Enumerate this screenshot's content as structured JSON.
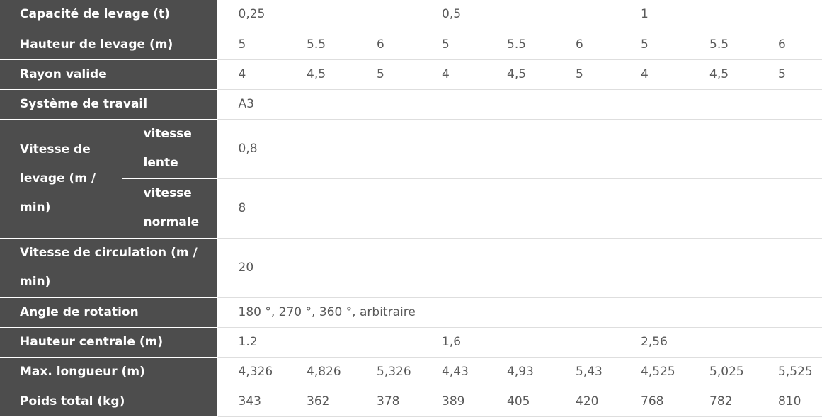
{
  "table": {
    "rows": [
      {
        "label": "Capacité de levage (t)",
        "values": [
          "0,25",
          "0,5",
          "1"
        ]
      },
      {
        "label": "Hauteur de levage (m)",
        "values": [
          "5",
          "5.5",
          "6",
          "5",
          "5.5",
          "6",
          "5",
          "5.5",
          "6"
        ]
      },
      {
        "label": "Rayon valide",
        "values": [
          "4",
          "4,5",
          "5",
          "4",
          "4,5",
          "5",
          "4",
          "4,5",
          "5"
        ]
      },
      {
        "label": "Système de travail",
        "values": [
          "A3"
        ]
      },
      {
        "label": "Vitesse de levage (m / min)",
        "sub": [
          {
            "label": "vitesse lente",
            "value": "0,8"
          },
          {
            "label": "vitesse normale",
            "value": "8"
          }
        ]
      },
      {
        "label": "Vitesse de circulation (m / min)",
        "values": [
          "20"
        ]
      },
      {
        "label": "Angle de rotation",
        "values": [
          "180 °, 270 °, 360 °, arbitraire"
        ]
      },
      {
        "label": "Hauteur centrale (m)",
        "values": [
          "1.2",
          "1,6",
          "2,56"
        ]
      },
      {
        "label": "Max. longueur (m)",
        "values": [
          "4,326",
          "4,826",
          "5,326",
          "4,43",
          "4,93",
          "5,43",
          "4,525",
          "5,025",
          "5,525"
        ]
      },
      {
        "label": "Poids total (kg)",
        "values": [
          "343",
          "362",
          "378",
          "389",
          "405",
          "420",
          "768",
          "782",
          "810"
        ]
      }
    ]
  }
}
